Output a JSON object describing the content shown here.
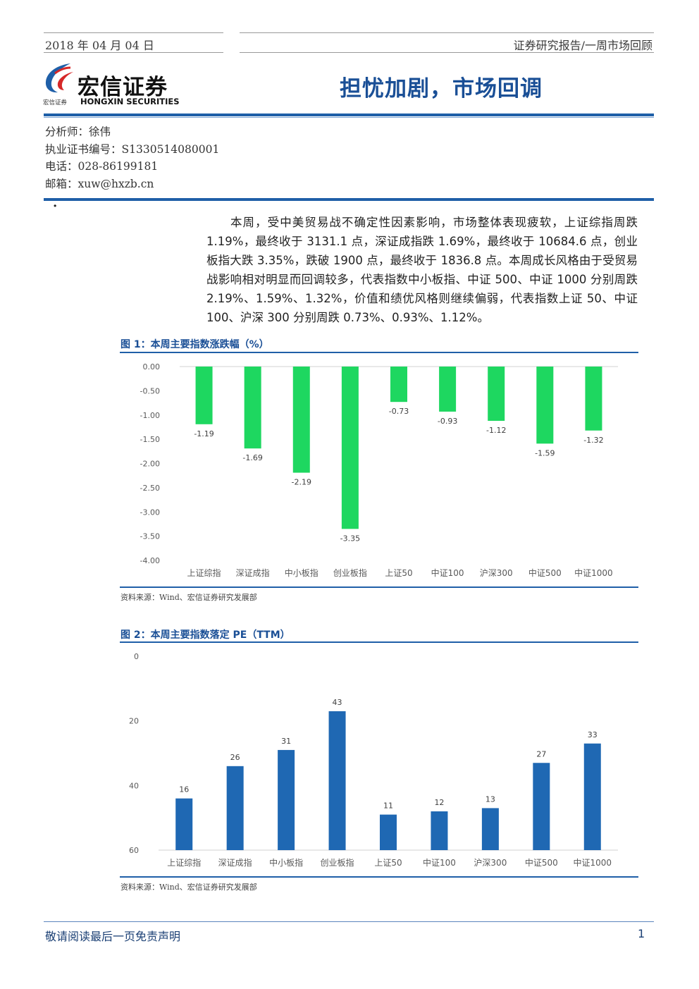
{
  "header": {
    "date": "2018 年 04 月 04 日",
    "category": "证券研究报告/一周市场回顾"
  },
  "logo": {
    "name_cn": "宏信证券",
    "small_cn": "宏信证券",
    "name_en": "HONGXIN SECURITIES"
  },
  "title": "担忧加剧，市场回调",
  "analyst": {
    "name": "分析师：徐伟",
    "cert": "执业证书编号：S1330514080001",
    "phone": "电话：028-86199181",
    "email": "邮箱：xuw@hxzb.cn"
  },
  "bullet": "·",
  "summary": "本周，受中美贸易战不确定性因素影响，市场整体表现疲软，上证综指周跌1.19%，最终收于 3131.1 点，深证成指跌 1.69%，最终收于 10684.6 点，创业板指大跌 3.35%，跌破 1900 点，最终收于 1836.8 点。本周成长风格由于受贸易战影响相对明显而回调较多，代表指数中小板指、中证 500、中证 1000 分别周跌 2.19%、1.59%、1.32%，价值和绩优风格则继续偏弱，代表指数上证 50、中证 100、沪深 300 分别周跌 0.73%、0.93%、1.12%。",
  "figure1": {
    "title": "图 1：本周主要指数涨跌幅（%）",
    "source": "资料来源：Wind、宏信证券研究发展部"
  },
  "figure2": {
    "title": "图 2：本周主要指数落定 PE（TTM）",
    "source": "资料来源：Wind、宏信证券研究发展部"
  },
  "chart_data": [
    {
      "type": "bar",
      "categories": [
        "上证综指",
        "深证成指",
        "中小板指",
        "创业板指",
        "上证50",
        "中证100",
        "沪深300",
        "中证500",
        "中证1000"
      ],
      "values": [
        -1.19,
        -1.69,
        -2.19,
        -3.35,
        -0.73,
        -0.93,
        -1.12,
        -1.59,
        -1.32
      ],
      "labels": [
        "-1.19",
        "-1.69",
        "-2.19",
        "-3.35",
        "-0.73",
        "-0.93",
        "-1.12",
        "-1.59",
        "-1.32"
      ],
      "ylim": [
        -4,
        0
      ],
      "yticks": [
        "0.00",
        "-0.50",
        "-1.00",
        "-1.50",
        "-2.00",
        "-2.50",
        "-3.00",
        "-3.50",
        "-4.00"
      ],
      "color": "#1ed760",
      "grid": false
    },
    {
      "type": "bar",
      "categories": [
        "上证综指",
        "深证成指",
        "中小板指",
        "创业板指",
        "上证50",
        "中证100",
        "沪深300",
        "中证500",
        "中证1000"
      ],
      "values": [
        16,
        26,
        31,
        43,
        11,
        12,
        13,
        27,
        33
      ],
      "labels": [
        "16",
        "26",
        "31",
        "43",
        "11",
        "12",
        "13",
        "27",
        "33"
      ],
      "ylim": [
        0,
        60
      ],
      "yticks": [
        "0",
        "20",
        "40",
        "60"
      ],
      "color": "#1f68b3",
      "grid": false
    }
  ],
  "footer": {
    "disclaimer": "敬请阅读最后一页免责声明",
    "page": "1"
  }
}
